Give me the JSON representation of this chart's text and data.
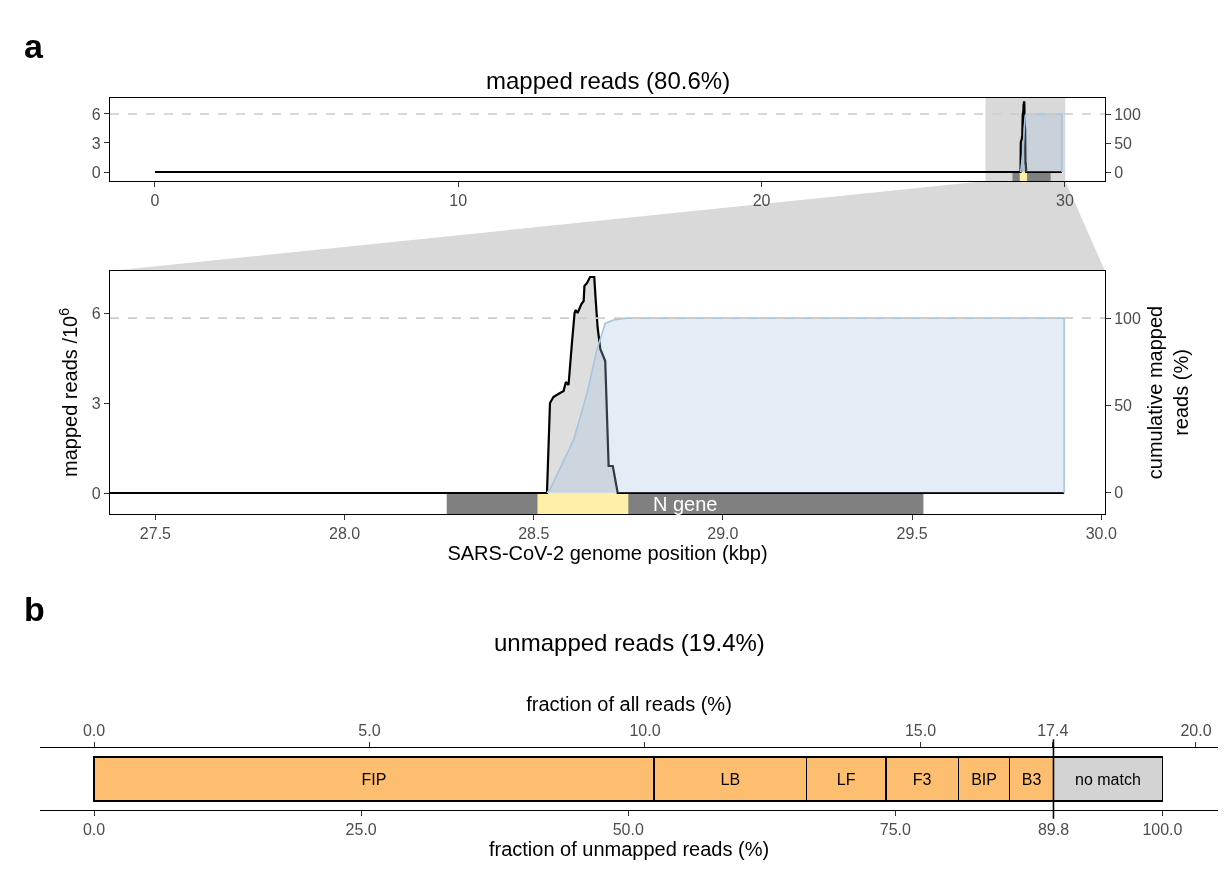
{
  "chart_data": [
    {
      "type": "area",
      "title": "mapped reads (80.6%)",
      "xlim": [
        -1.48,
        31.32
      ],
      "xticks": [
        0,
        10,
        20,
        30
      ],
      "ylim": [
        -0.93,
        7.65
      ],
      "yticks": [
        0,
        3,
        6
      ],
      "y2lim": [
        -15.5,
        127.6
      ],
      "y2ticks": [
        0,
        50,
        100
      ],
      "series": [
        {
          "color": "#000000",
          "x": [
            0,
            28.535,
            28.543,
            28.552,
            28.565,
            28.579,
            28.585,
            28.592,
            28.601,
            28.608,
            28.611,
            28.616,
            28.626,
            28.632,
            28.634,
            28.641,
            28.649,
            28.654,
            28.658,
            28.66,
            28.664,
            28.669,
            28.676,
            28.689,
            28.698,
            28.709,
            28.722,
            29.902
          ],
          "values": [
            0,
            0,
            3.0,
            3.2,
            3.3,
            3.4,
            3.7,
            3.6,
            5.0,
            6.0,
            6.1,
            6.0,
            6.3,
            6.4,
            6.9,
            7.0,
            7.2,
            7.2,
            7.2,
            7.2,
            6.4,
            5.5,
            4.8,
            4.4,
            0.9,
            0.9,
            0,
            0
          ]
        },
        {
          "color": "#a6c4e0",
          "axis": "y2",
          "x": [
            28.535,
            28.543,
            28.605,
            28.641,
            28.667,
            28.689,
            28.711,
            28.746,
            29.902,
            29.902
          ],
          "values": [
            0,
            2,
            30,
            57,
            82,
            97,
            99,
            100,
            100,
            0
          ]
        }
      ],
      "ref_lines": [
        {
          "axis": "y2",
          "value": 100,
          "color": "#cccccc",
          "line_style": "dashed"
        }
      ],
      "bands": [
        {
          "axis": "x",
          "from": 27.38,
          "to": 30.01,
          "color": "#d9d9d9"
        },
        {
          "axis": "x",
          "from": 28.27,
          "to": 29.53,
          "color": "#808080"
        },
        {
          "axis": "x",
          "from": 28.51,
          "to": 28.75,
          "color": "#fff0a8"
        }
      ],
      "annotations": [
        "a"
      ]
    },
    {
      "type": "area",
      "xlabel": "SARS-CoV-2 genome position (kbp)",
      "ylabel": "mapped reads /10$^{6}$",
      "y2label": "cumulative mapped reads (%)",
      "xlim": [
        27.38,
        30.01
      ],
      "xticks": [
        {
          "value": 27.5,
          "label": "27.5"
        },
        {
          "value": 28,
          "label": "28.0"
        },
        {
          "value": 28.5,
          "label": "28.5"
        },
        {
          "value": 29,
          "label": "29.0"
        },
        {
          "value": 29.5,
          "label": "29.5"
        },
        {
          "value": 30,
          "label": "30.0"
        }
      ],
      "ylim": [
        -0.7,
        7.4
      ],
      "yticks": [
        0,
        3,
        6
      ],
      "y2lim": [
        -12.1,
        127
      ],
      "y2ticks": [
        0,
        50,
        100
      ],
      "series": [
        {
          "color": "#000000",
          "x": [
            27.38,
            28.535,
            28.543,
            28.552,
            28.565,
            28.579,
            28.585,
            28.592,
            28.601,
            28.608,
            28.611,
            28.616,
            28.626,
            28.632,
            28.634,
            28.641,
            28.649,
            28.654,
            28.658,
            28.66,
            28.664,
            28.669,
            28.676,
            28.689,
            28.698,
            28.709,
            28.722,
            29.902
          ],
          "values": [
            0,
            0,
            3.0,
            3.2,
            3.3,
            3.4,
            3.7,
            3.6,
            5.0,
            6.0,
            6.1,
            6.0,
            6.3,
            6.4,
            6.9,
            7.0,
            7.2,
            7.2,
            7.2,
            7.2,
            6.4,
            5.5,
            4.8,
            4.4,
            0.9,
            0.9,
            0,
            0
          ]
        },
        {
          "color": "#a6c4e0",
          "axis": "y2",
          "x": [
            28.535,
            28.543,
            28.605,
            28.641,
            28.667,
            28.689,
            28.711,
            28.746,
            29.902,
            29.902
          ],
          "values": [
            0,
            2,
            30,
            57,
            82,
            97,
            99,
            100,
            100,
            0
          ]
        }
      ],
      "ref_lines": [
        {
          "axis": "y2",
          "value": 100,
          "color": "#cccccc",
          "line_style": "dashed"
        }
      ],
      "bands": [
        {
          "axis": "x",
          "from": 28.27,
          "to": 29.53,
          "color": "#808080",
          "label": "N gene"
        },
        {
          "axis": "x",
          "from": 28.51,
          "to": 28.75,
          "color": "#fff0a8"
        }
      ]
    },
    {
      "type": "bar",
      "orientation": "horizontal",
      "stacked": true,
      "title": "unmapped reads (19.4%)",
      "xlabel": "fraction of unmapped reads (%)",
      "x2label": "fraction of all reads (%)",
      "tick_labels": "x",
      "categories": [
        null
      ],
      "xlim": [
        -5.06,
        105.2
      ],
      "xticks": [
        {
          "value": 0,
          "label": "0.0"
        },
        {
          "value": 25,
          "label": "25.0"
        },
        {
          "value": 50,
          "label": "50.0"
        },
        {
          "value": 75,
          "label": "75.0"
        },
        {
          "value": 89.8,
          "label": "89.8"
        },
        {
          "value": 100,
          "label": "100.0"
        }
      ],
      "x2lim": [
        -0.98,
        20.4
      ],
      "x2ticks": [
        {
          "value": 0,
          "label": "0.0"
        },
        {
          "value": 5,
          "label": "5.0"
        },
        {
          "value": 10,
          "label": "10.0"
        },
        {
          "value": 15,
          "label": "15.0"
        },
        {
          "value": 17.4,
          "label": "17.4"
        },
        {
          "value": 20,
          "label": "20.0"
        }
      ],
      "series": [
        {
          "name": "FIP",
          "color": "#fdbf6f",
          "values": [
            52.4
          ]
        },
        {
          "name": "LB",
          "color": "#fdbf6f",
          "values": [
            14.3
          ]
        },
        {
          "name": "LF",
          "color": "#fdbf6f",
          "values": [
            7.4
          ]
        },
        {
          "name": "F3",
          "color": "#fdbf6f",
          "values": [
            6.8
          ]
        },
        {
          "name": "BIP",
          "color": "#fdbf6f",
          "values": [
            4.8
          ]
        },
        {
          "name": "B3",
          "color": "#fdbf6f",
          "values": [
            4.1
          ]
        },
        {
          "name": "no match",
          "color": "#d3d3d3",
          "values": [
            10.2
          ]
        }
      ],
      "ref_lines": [
        {
          "axis": "x",
          "value": 89.8,
          "color": "#000000"
        }
      ],
      "annotations": [
        "b"
      ]
    }
  ]
}
